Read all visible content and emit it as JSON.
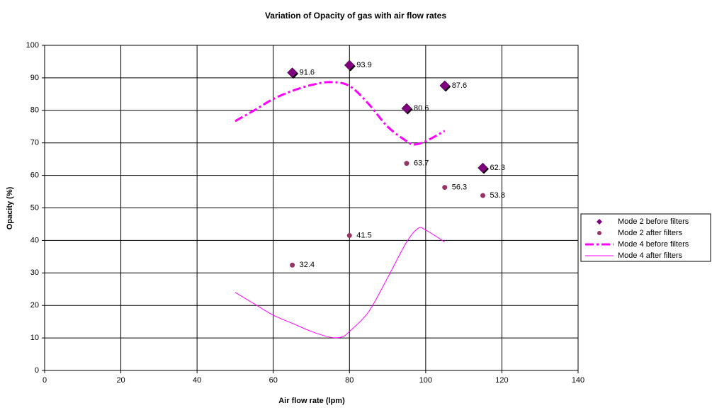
{
  "chart_data": {
    "type": "scatter",
    "title": "Variation of Opacity of gas with air flow rates",
    "x_label": "Air flow rate (lpm)",
    "y_label": "Opacity (%)",
    "xlim": [
      0,
      140
    ],
    "xticks": [
      0,
      20,
      40,
      60,
      80,
      100,
      120,
      140
    ],
    "ylim": [
      0,
      100
    ],
    "yticks": [
      0,
      10,
      20,
      30,
      40,
      50,
      60,
      70,
      80,
      90,
      100
    ],
    "grid": true,
    "legend": "right",
    "series": [
      {
        "name": "Mode 2 before filters",
        "color": "#800080",
        "marker": "diamond",
        "data_labels": true,
        "x": [
          65,
          80,
          95,
          105,
          115
        ],
        "values": [
          91.6,
          93.9,
          80.6,
          87.6,
          62.3
        ]
      },
      {
        "name": "Mode 2 after filters",
        "color": "#993366",
        "marker": "circle",
        "data_labels": true,
        "x": [
          65,
          80,
          95,
          105,
          115
        ],
        "values": [
          32.4,
          41.5,
          63.7,
          56.3,
          53.8
        ]
      },
      {
        "name": "Mode 4 before filters",
        "color": "#ff00ff",
        "line": "dashed",
        "x": [
          50,
          55,
          60,
          65,
          70,
          75,
          80,
          85,
          90,
          95,
          97,
          100,
          105
        ],
        "values": [
          76.7,
          80,
          83.5,
          86,
          87.8,
          88.7,
          87.5,
          82,
          75,
          70.5,
          69.5,
          70.5,
          73.7
        ]
      },
      {
        "name": "Mode 4 after filters",
        "color": "#ff00ff",
        "line": "solid",
        "x": [
          50,
          55,
          60,
          65,
          70,
          75,
          78,
          80,
          85,
          90,
          95,
          98,
          100,
          105
        ],
        "values": [
          24,
          20.5,
          17,
          14.5,
          12,
          10.2,
          10.3,
          12,
          18,
          28.5,
          39.5,
          43.7,
          43.2,
          39.5
        ]
      }
    ]
  }
}
